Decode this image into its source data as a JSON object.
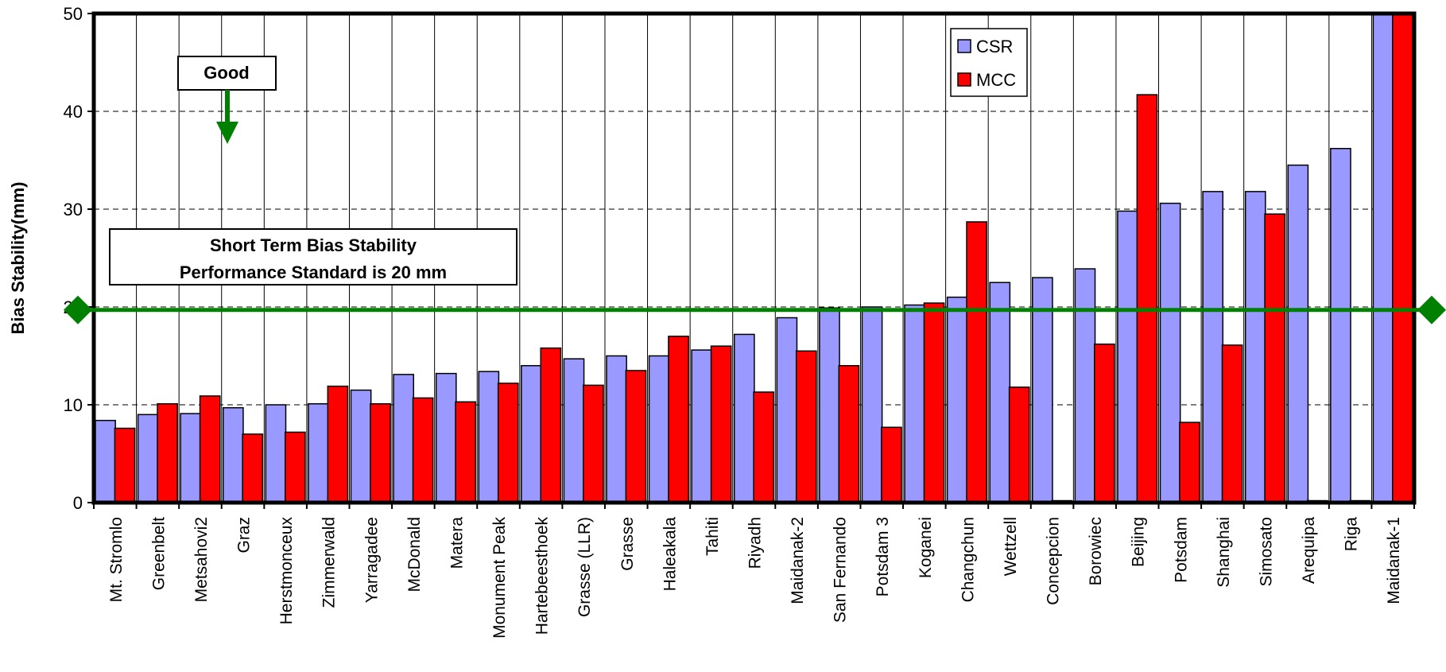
{
  "chart_data": {
    "type": "bar",
    "ylabel": "Bias Stability(mm)",
    "ylim": [
      0,
      50
    ],
    "yticks": [
      0,
      10,
      20,
      30,
      40,
      50
    ],
    "grid": "horizontal dashed, vertical solid",
    "legend": "top-right",
    "categories": [
      "Mt. Stromlo",
      "Greenbelt",
      "Metsahovi2",
      "Graz",
      "Herstmonceux",
      "Zimmerwald",
      "Yarragadee",
      "McDonald",
      "Matera",
      "Monument Peak",
      "Hartebeesthoek",
      "Grasse (LLR)",
      "Grasse",
      "Haleakala",
      "Tahiti",
      "Riyadh",
      "Maidanak-2",
      "San Fernando",
      "Potsdam 3",
      "Koganei",
      "Changchun",
      "Wettzell",
      "Concepcion",
      "Borowiec",
      "Beijing",
      "Potsdam",
      "Shanghai",
      "Simosato",
      "Arequipa",
      "Riga",
      "Maidanak-1"
    ],
    "series": [
      {
        "name": "CSR",
        "color": "#9999ff",
        "values": [
          8.4,
          9.0,
          9.1,
          9.7,
          10.0,
          10.1,
          11.5,
          13.1,
          13.2,
          13.4,
          14.0,
          14.7,
          15.0,
          15.0,
          15.6,
          17.2,
          18.9,
          19.9,
          20.0,
          20.2,
          21.0,
          22.5,
          23.0,
          23.9,
          29.8,
          30.6,
          31.8,
          31.8,
          34.5,
          36.2,
          50.0
        ]
      },
      {
        "name": "MCC",
        "color": "#ff0000",
        "values": [
          7.6,
          10.1,
          10.9,
          7.0,
          7.2,
          11.9,
          10.1,
          10.7,
          10.3,
          12.2,
          15.8,
          12.0,
          13.5,
          17.0,
          16.0,
          11.3,
          15.5,
          14.0,
          7.7,
          20.4,
          28.7,
          11.8,
          0.2,
          16.2,
          41.7,
          8.2,
          16.1,
          29.5,
          0.2,
          0.2,
          50.0
        ]
      }
    ],
    "reference_line": {
      "value": 19.7,
      "color": "#008000"
    },
    "annotations": {
      "good_label": "Good",
      "standard_line1": "Short Term Bias Stability",
      "standard_line2": "Performance Standard is 20 mm"
    }
  }
}
